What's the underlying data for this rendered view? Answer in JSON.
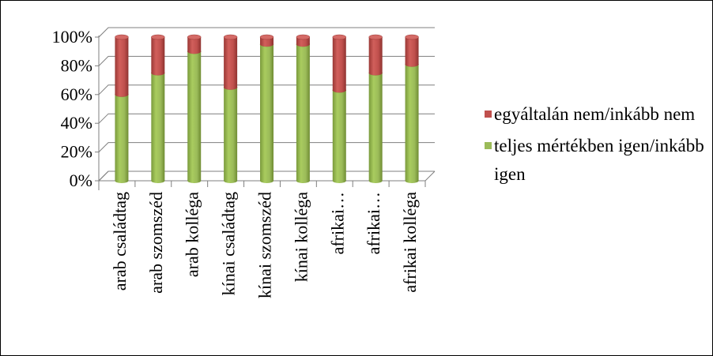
{
  "chart_data": {
    "type": "bar",
    "stacked": true,
    "percent": true,
    "categories": [
      "arab családtag",
      "arab szomszéd",
      "arab kolléga",
      "kínai családtag",
      "kínai szomszéd",
      "kínai kolléga",
      "afrikai…",
      "afrikai…",
      "afrikai kolléga"
    ],
    "series": [
      {
        "name": "teljes mértékben igen/inkább igen",
        "color": "#9BBB59",
        "values": [
          60,
          75,
          90,
          65,
          95,
          95,
          63,
          75,
          81
        ]
      },
      {
        "name": "egyáltalán nem/inkább nem",
        "color": "#C0504D",
        "values": [
          40,
          25,
          10,
          35,
          5,
          5,
          37,
          25,
          19
        ]
      }
    ],
    "ylim": [
      0,
      100
    ],
    "yticks": [
      "0%",
      "20%",
      "40%",
      "60%",
      "80%",
      "100%"
    ],
    "grid": true,
    "legend_position": "right"
  }
}
